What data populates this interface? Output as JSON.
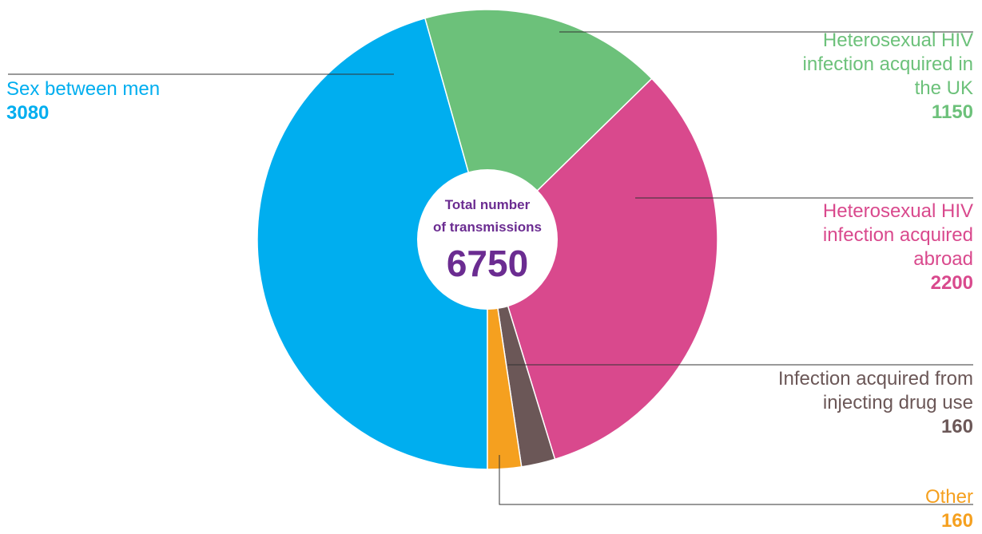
{
  "chart_data": {
    "type": "pie",
    "categories": [
      "Sex between men",
      "Heterosexual HIV infection acquired in the UK",
      "Heterosexual HIV infection acquired abroad",
      "Infection acquired from injecting drug use",
      "Other"
    ],
    "values": [
      3080,
      1150,
      2200,
      160,
      160
    ],
    "colors": [
      "#00aeef",
      "#6cc17a",
      "#d9498d",
      "#6b5757",
      "#f5a01f"
    ],
    "center_label_lines": [
      "Total number",
      "of transmissions"
    ],
    "total": 6750
  }
}
